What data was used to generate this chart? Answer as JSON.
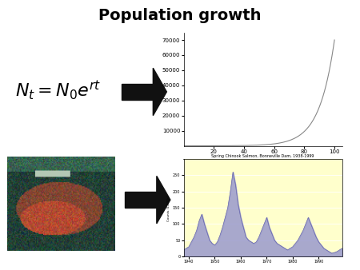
{
  "title": "Population growth",
  "title_fontsize": 14,
  "title_fontweight": "bold",
  "formula": "$N_t = N_0 e^{rt}$",
  "formula_fontsize": 16,
  "exp_r": 0.1,
  "exp_N0": 1,
  "exp_xlim": [
    0,
    105
  ],
  "exp_ylim": [
    0,
    75000
  ],
  "exp_yticks": [
    10000,
    20000,
    30000,
    40000,
    50000,
    60000,
    70000
  ],
  "exp_xticks": [
    20,
    40,
    60,
    80,
    100
  ],
  "salmon_chart_title": "Spring Chinook Salmon, Bonneville Dam, 1938-1999",
  "salmon_bg": "#ffffcc",
  "salmon_fill_color": "#9999cc",
  "salmon_line_color": "#6666aa",
  "arrow_color": "#111111"
}
